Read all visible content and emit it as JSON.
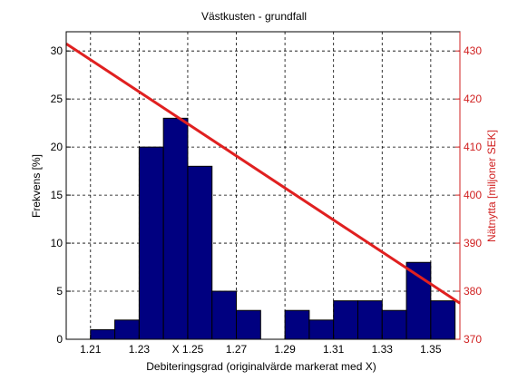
{
  "chart_data": {
    "type": "bar",
    "title": "Västkusten - grundfall",
    "xlabel": "Debiteringsgrad (originalvärde markerat med X)",
    "ylabel_left": "Frekvens [%]",
    "ylabel_right": "Nätnytta [miljoner SEK]",
    "xlim": [
      1.2,
      1.362
    ],
    "ylim_left": [
      0,
      32
    ],
    "ylim_right": [
      370,
      434
    ],
    "grid": true,
    "colors": {
      "bars": "#000080",
      "line": "#e02020",
      "right_axis": "#d02020",
      "grid": "#000000"
    },
    "x_ticks": [
      {
        "value": 1.21,
        "label": "1.21"
      },
      {
        "value": 1.23,
        "label": "1.23"
      },
      {
        "value": 1.25,
        "label": "X 1.25"
      },
      {
        "value": 1.27,
        "label": "1.27"
      },
      {
        "value": 1.29,
        "label": "1.29"
      },
      {
        "value": 1.31,
        "label": "1.31"
      },
      {
        "value": 1.33,
        "label": "1.33"
      },
      {
        "value": 1.35,
        "label": "1.35"
      }
    ],
    "y_ticks_left": [
      0,
      5,
      10,
      15,
      20,
      25,
      30
    ],
    "y_ticks_right": [
      370,
      380,
      390,
      400,
      410,
      420,
      430
    ],
    "bin_width": 0.01,
    "bins": [
      {
        "center": 1.215,
        "value": 1
      },
      {
        "center": 1.225,
        "value": 2
      },
      {
        "center": 1.235,
        "value": 20
      },
      {
        "center": 1.245,
        "value": 23
      },
      {
        "center": 1.255,
        "value": 18
      },
      {
        "center": 1.265,
        "value": 5
      },
      {
        "center": 1.275,
        "value": 3
      },
      {
        "center": 1.285,
        "value": 0
      },
      {
        "center": 1.295,
        "value": 3
      },
      {
        "center": 1.305,
        "value": 2
      },
      {
        "center": 1.315,
        "value": 4
      },
      {
        "center": 1.325,
        "value": 4
      },
      {
        "center": 1.335,
        "value": 3
      },
      {
        "center": 1.345,
        "value": 8
      },
      {
        "center": 1.355,
        "value": 4
      }
    ],
    "line_series": {
      "x": [
        1.2,
        1.362
      ],
      "y": [
        431.5,
        377.5
      ]
    }
  }
}
